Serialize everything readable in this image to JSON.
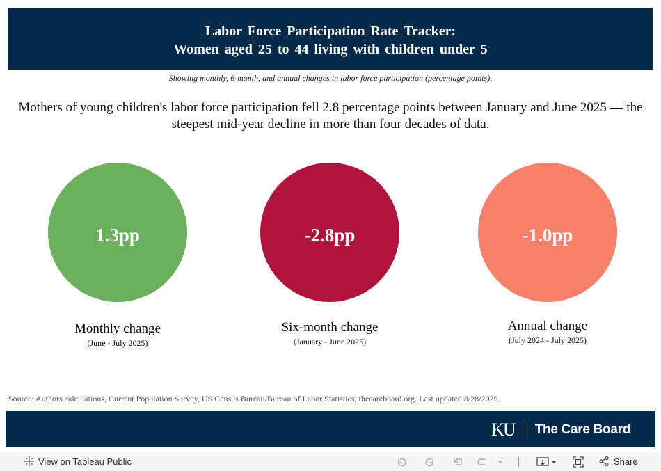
{
  "header": {
    "title_line1": "Labor Force Participation Rate Tracker:",
    "title_line2": "Women aged 25 to 44 living with children under 5"
  },
  "subtitle": "Showing monthly, 6-month, and annual changes in labor force participation (percentage points).",
  "headline": "Mothers of young children's labor force participation fell 2.8 percentage points between January and June 2025 — the steepest mid-year decline in more than four decades of data.",
  "metrics": [
    {
      "value": "1.3pp",
      "label": "Monthly change",
      "period": "(June - July 2025)",
      "color": "#6bb05c"
    },
    {
      "value": "-2.8pp",
      "label": "Six-month change",
      "period": "(January - June 2025)",
      "color": "#af143c"
    },
    {
      "value": "-1.0pp",
      "label": "Annual change",
      "period": "(July 2024 - July 2025)",
      "color": "#f7806a"
    }
  ],
  "source": "Source: Authors calculations, Current Population Survey, US Census Bureau/Bureau of Labor Statistics, thecareboard.org. Last updated 8/28/2025.",
  "footer": {
    "ku_logo": "KU",
    "brand_name": "The Care Board",
    "band_color": "#062a4a"
  },
  "toolbar": {
    "view_label": "View on Tableau Public",
    "share_label": "Share",
    "icons": [
      "tableau-logo-icon",
      "undo-icon",
      "redo-icon",
      "revert-icon",
      "refresh-icon",
      "chevron-down-icon",
      "download-icon",
      "fullscreen-icon",
      "share-icon"
    ]
  }
}
